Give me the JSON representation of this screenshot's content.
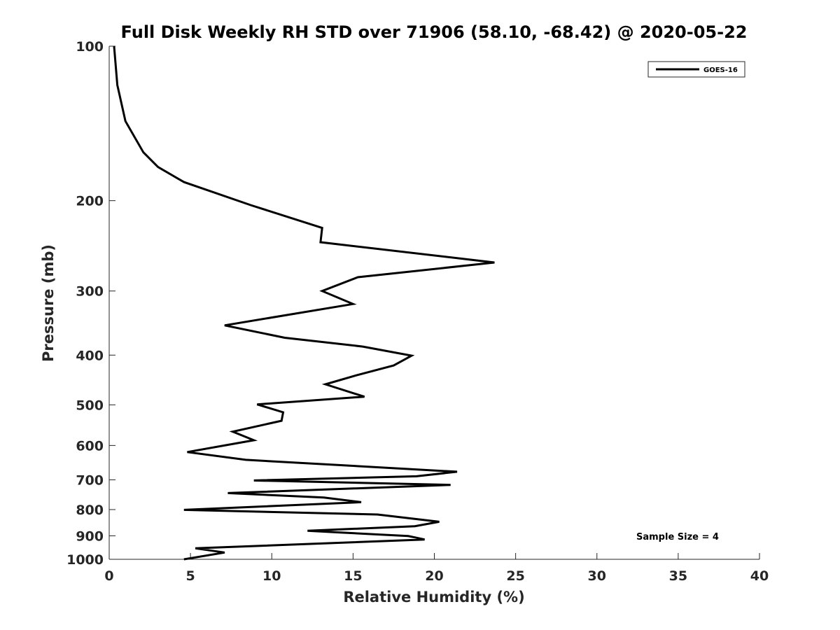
{
  "chart_data": {
    "type": "line",
    "title": "Full Disk Weekly RH STD over 71906 (58.10, -68.42) @ 2020-05-22",
    "xlabel": "Relative Humidity (%)",
    "ylabel": "Pressure (mb)",
    "xlim": [
      0,
      40
    ],
    "ylim": [
      100,
      1000
    ],
    "yscale": "log",
    "yreversed": true,
    "grid": false,
    "legend_position": "top-right",
    "xticks": [
      0,
      5,
      10,
      15,
      20,
      25,
      30,
      35,
      40
    ],
    "xtick_labels": [
      "0",
      "5",
      "10",
      "15",
      "20",
      "25",
      "30",
      "35",
      "40"
    ],
    "yticks": [
      100,
      200,
      300,
      400,
      500,
      600,
      700,
      800,
      900,
      1000
    ],
    "ytick_labels": [
      "100",
      "200",
      "300",
      "400",
      "500",
      "600",
      "700",
      "800",
      "900",
      "1000"
    ],
    "annotation": "Sample Size = 4",
    "series": [
      {
        "name": "GOES-16",
        "color": "#000000",
        "x": [
          0.3,
          0.5,
          1.0,
          2.1,
          3.0,
          4.6,
          8.7,
          13.1,
          13.0,
          23.7,
          15.3,
          13.1,
          15.0,
          7.1,
          10.8,
          15.6,
          18.6,
          17.5,
          15.2,
          13.3,
          15.7,
          9.1,
          10.7,
          10.6,
          7.6,
          8.9,
          4.8,
          8.4,
          21.4,
          18.9,
          8.9,
          21.0,
          7.3,
          13.2,
          15.5,
          4.6,
          16.5,
          20.3,
          18.8,
          12.2,
          18.4,
          19.4,
          5.3,
          7.1,
          4.6
        ],
        "y": [
          100,
          119,
          140,
          161,
          172,
          184,
          204,
          226,
          241,
          264,
          282,
          300,
          318,
          350,
          370,
          385,
          401,
          419,
          438,
          456,
          482,
          499,
          517,
          537,
          564,
          586,
          618,
          640,
          675,
          689,
          702,
          716,
          743,
          758,
          774,
          801,
          818,
          845,
          862,
          880,
          901,
          915,
          952,
          970,
          1000
        ]
      }
    ]
  }
}
